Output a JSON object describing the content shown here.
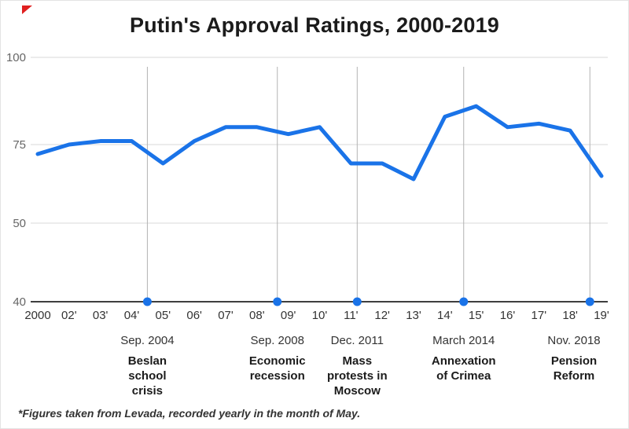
{
  "title": "Putin's Approval Ratings, 2000-2019",
  "footnote": "*Figures taken from Levada, recorded yearly in the month of May.",
  "colors": {
    "line": "#1a73e8",
    "dot": "#1a73e8",
    "grid": "#d9d9d9",
    "event_line": "#b3b3b3",
    "axis": "#222222",
    "x_label": "#333333",
    "y_label": "#666666",
    "corner_mark": "#e02020"
  },
  "chart_data": {
    "type": "line",
    "title": "Putin's Approval Ratings, 2000-2019",
    "xlabel": "",
    "ylabel": "",
    "categories": [
      "2000",
      "02'",
      "03'",
      "04'",
      "05'",
      "06'",
      "07'",
      "08'",
      "09'",
      "10'",
      "11'",
      "12'",
      "13'",
      "14'",
      "15'",
      "16'",
      "17'",
      "18'",
      "19'"
    ],
    "values": [
      72,
      75,
      76,
      76,
      69,
      76,
      80,
      80,
      78,
      80,
      69,
      69,
      64,
      83,
      86,
      80,
      81,
      79,
      65
    ],
    "y_ticks": [
      100,
      75,
      50,
      40
    ],
    "ylim": [
      40,
      100
    ],
    "grid": true,
    "legend": false,
    "events": [
      {
        "date": "Sep. 2004",
        "description_lines": [
          "Beslan",
          "school",
          "crisis"
        ],
        "x_index": 3.5
      },
      {
        "date": "Sep. 2008",
        "description_lines": [
          "Economic",
          "recession"
        ],
        "x_index": 7.65
      },
      {
        "date": "Dec. 2011",
        "description_lines": [
          "Mass",
          "protests in",
          "Moscow"
        ],
        "x_index": 10.2
      },
      {
        "date": "March 2014",
        "description_lines": [
          "Annexation",
          "of Crimea"
        ],
        "x_index": 13.6
      },
      {
        "date": "Nov. 2018",
        "description_lines": [
          "Pension",
          "Reform"
        ],
        "x_index": 17.63
      }
    ]
  }
}
